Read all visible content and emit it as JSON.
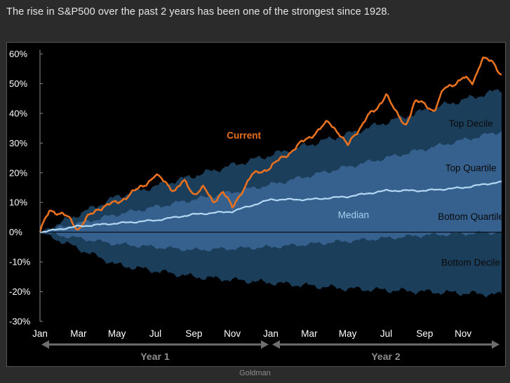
{
  "headline": "The rise in S&P500 over the past 2 years has been one of the strongest since 1928.",
  "source": "Goldman",
  "chart_data": {
    "type": "area",
    "title": "",
    "ylabel": "",
    "xlabel": "",
    "ylim": [
      -30,
      60
    ],
    "y_ticks": [
      60,
      50,
      40,
      30,
      20,
      10,
      0,
      -10,
      -20,
      -30
    ],
    "y_tick_labels": [
      "60%",
      "50%",
      "40%",
      "30%",
      "20%",
      "10%",
      "0%",
      "-10%",
      "-20%",
      "-30%"
    ],
    "x_range_months": [
      0,
      24
    ],
    "x_ticks": [
      0,
      2,
      4,
      6,
      8,
      10,
      12,
      14,
      16,
      18,
      20,
      22
    ],
    "x_tick_labels": [
      "Jan",
      "Mar",
      "May",
      "Jul",
      "Sep",
      "Nov",
      "Jan",
      "Mar",
      "May",
      "Jul",
      "Sep",
      "Nov"
    ],
    "periods": [
      {
        "label": "Year 1",
        "start": 0,
        "end": 12
      },
      {
        "label": "Year 2",
        "start": 12,
        "end": 24
      }
    ],
    "bands": [
      {
        "name": "Top Decile",
        "months": [
          0,
          4,
          8,
          12,
          16,
          20,
          24
        ],
        "values": [
          0,
          12,
          19,
          26,
          33,
          41,
          48
        ]
      },
      {
        "name": "Top Quartile",
        "months": [
          0,
          4,
          8,
          12,
          16,
          20,
          24
        ],
        "values": [
          0,
          6,
          11,
          16,
          22,
          28,
          34
        ]
      },
      {
        "name": "Bottom Quartile",
        "months": [
          0,
          4,
          8,
          12,
          16,
          20,
          24
        ],
        "values": [
          0,
          -4,
          -6,
          -5,
          -3,
          -1,
          0
        ]
      },
      {
        "name": "Bottom Decile",
        "months": [
          0,
          4,
          8,
          12,
          16,
          20,
          24
        ],
        "values": [
          0,
          -11,
          -15,
          -17,
          -19,
          -20,
          -21
        ]
      }
    ],
    "series": [
      {
        "name": "Current",
        "color": "#e8711f",
        "months": [
          0,
          0.5,
          1,
          1.5,
          2,
          2.5,
          3,
          4,
          5,
          6,
          6.5,
          7,
          7.5,
          8,
          8.5,
          9,
          9.5,
          10,
          10.5,
          11,
          12,
          13,
          14,
          15,
          15.5,
          16,
          16.5,
          17,
          17.5,
          18,
          18.5,
          19,
          19.5,
          20,
          20.5,
          21,
          21.5,
          22,
          22.5,
          23,
          23.5,
          24
        ],
        "values": [
          0,
          8,
          6,
          5,
          1,
          5,
          8,
          10,
          14,
          19,
          17,
          14,
          17,
          13,
          15,
          10,
          14,
          8,
          14,
          19,
          22,
          27,
          32,
          37,
          34,
          29,
          34,
          39,
          41,
          47,
          40,
          36,
          44,
          43,
          41,
          48,
          50,
          52,
          50,
          59,
          57,
          53
        ]
      },
      {
        "name": "Median",
        "color": "#b4d8f2",
        "months": [
          0,
          2,
          4,
          6,
          8,
          10,
          11,
          12,
          14,
          16,
          18,
          20,
          22,
          24
        ],
        "values": [
          0,
          2,
          3,
          4,
          6,
          7,
          9,
          11,
          11,
          12,
          14,
          14,
          15,
          17
        ]
      }
    ],
    "band_labels": [
      "Top Decile",
      "Top Quartile",
      "Bottom Quartile",
      "Bottom Decile"
    ],
    "series_labels": [
      "Current",
      "Median"
    ],
    "colors": {
      "background": "#000000",
      "decile_band": "#1b3e5b",
      "quartile_band": "#36618f",
      "median_line": "#b4d8f2",
      "current_line": "#e8711f",
      "axis_text": "#ffffff",
      "period_arrow": "#6e6e6e"
    },
    "grid": false
  }
}
